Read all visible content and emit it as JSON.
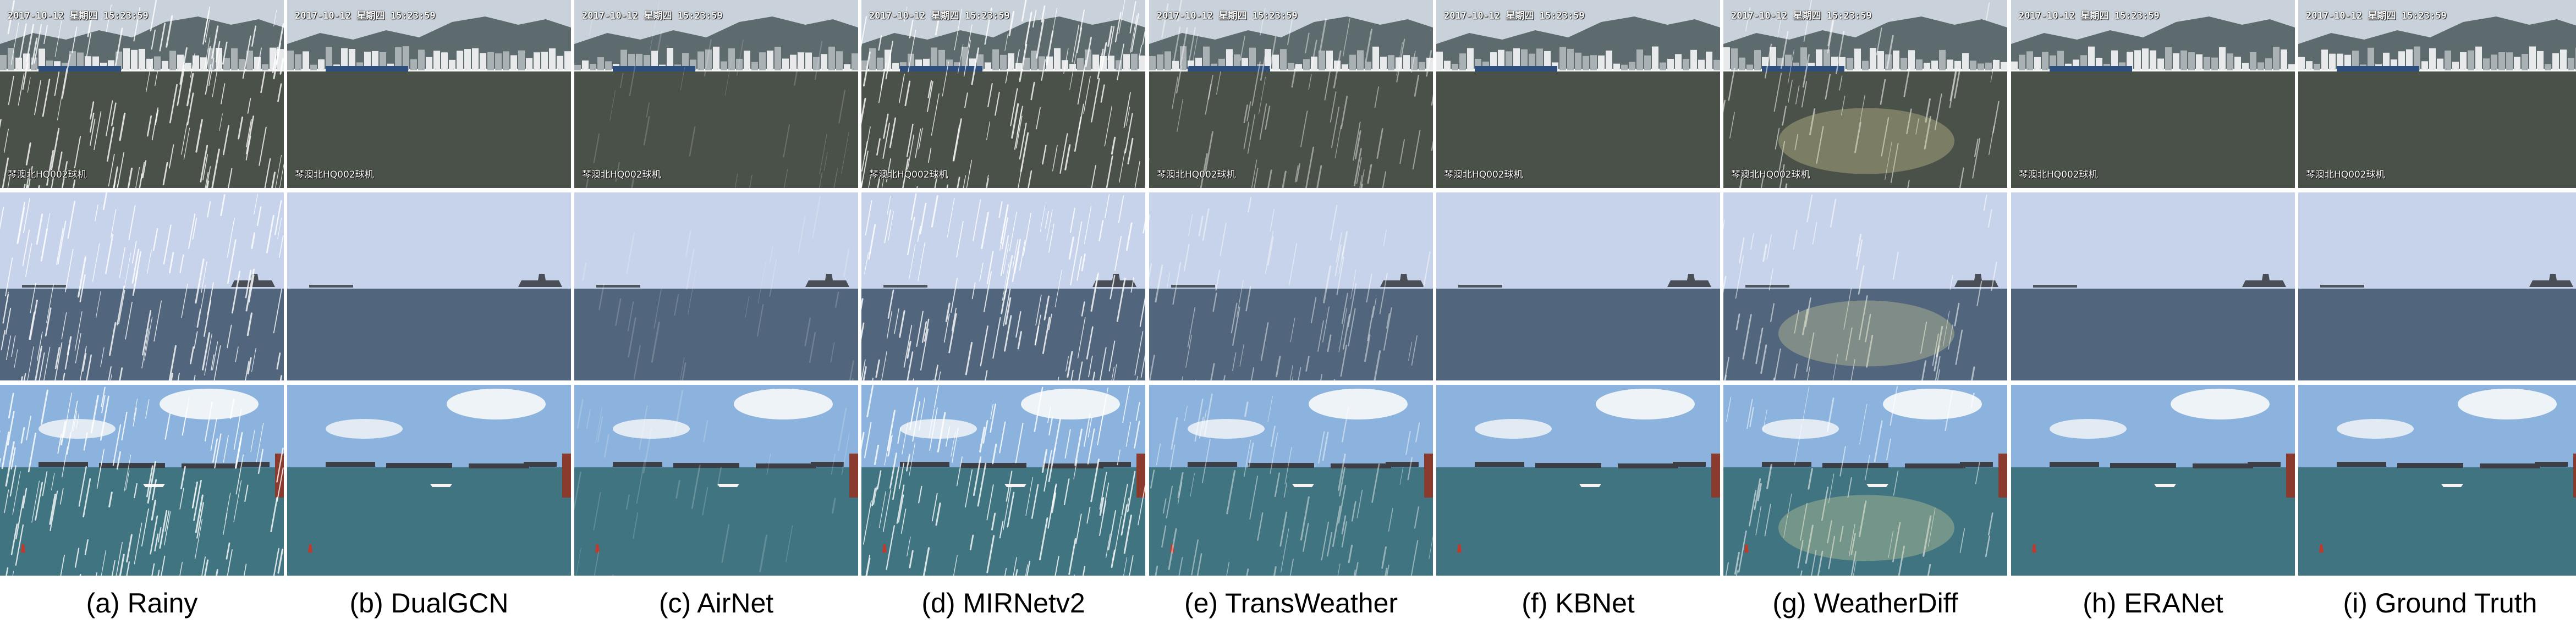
{
  "overlay": {
    "timestamp": "2017-10-12 星期四 15:23:59",
    "camera_label": "琴澳北HQ002球机"
  },
  "columns": [
    {
      "caption": "(a) Rainy",
      "rain": "heavy"
    },
    {
      "caption": "(b) DualGCN",
      "rain": "none"
    },
    {
      "caption": "(c) AirNet",
      "rain": "faint"
    },
    {
      "caption": "(d) MIRNetv2",
      "rain": "heavy"
    },
    {
      "caption": "(e) TransWeather",
      "rain": "medium"
    },
    {
      "caption": "(f) KBNet",
      "rain": "none"
    },
    {
      "caption": "(g) WeatherDiff",
      "rain": "artifact"
    },
    {
      "caption": "(h) ERANet",
      "rain": "none"
    },
    {
      "caption": "(i) Ground Truth",
      "rain": "none"
    }
  ],
  "colors": {
    "harbor_sky": "#c9d2da",
    "harbor_mountain": "#5d6a6e",
    "harbor_water": "#4a5148",
    "sea_sky": "#c7d3ea",
    "sea_water": "#51667d",
    "ships_sky": "#8bb3dd",
    "ships_water": "#3f7480",
    "rain": "#ffffff"
  }
}
